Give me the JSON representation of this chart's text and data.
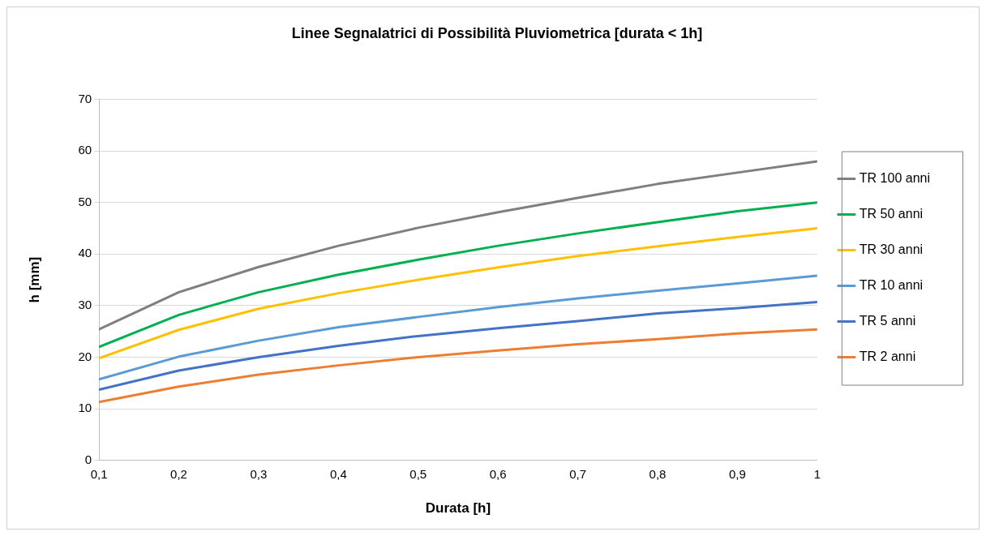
{
  "chart_data": {
    "type": "line",
    "title": "Linee Segnalatrici di Possibilità Pluviometrica [durata < 1h]",
    "xlabel": "Durata [h]",
    "ylabel": "h [mm]",
    "x": [
      0.1,
      0.2,
      0.3,
      0.4,
      0.5,
      0.6,
      0.7,
      0.8,
      0.9,
      1
    ],
    "xlim": [
      0.1,
      1
    ],
    "xticks": [
      {
        "value": 0.1,
        "label": "0,1"
      },
      {
        "value": 0.2,
        "label": "0,2"
      },
      {
        "value": 0.3,
        "label": "0,3"
      },
      {
        "value": 0.4,
        "label": "0,4"
      },
      {
        "value": 0.5,
        "label": "0,5"
      },
      {
        "value": 0.6,
        "label": "0,6"
      },
      {
        "value": 0.7,
        "label": "0,7"
      },
      {
        "value": 0.8,
        "label": "0,8"
      },
      {
        "value": 0.9,
        "label": "0,9"
      },
      1
    ],
    "ylim": [
      0,
      70
    ],
    "yticks": [
      0,
      10,
      20,
      30,
      40,
      50,
      60,
      70
    ],
    "grid": "y",
    "legend": "right",
    "marker": "none",
    "line_style": "solid",
    "series": [
      {
        "name": "TR 100 anni",
        "color": "#7f7f7f",
        "values": [
          25.4,
          32.6,
          37.5,
          41.6,
          45.1,
          48.1,
          50.9,
          53.6,
          55.8,
          58.0
        ]
      },
      {
        "name": "TR 50 anni",
        "color": "#00b050",
        "values": [
          22.0,
          28.2,
          32.6,
          36.0,
          38.9,
          41.6,
          44.0,
          46.2,
          48.3,
          50.0
        ]
      },
      {
        "name": "TR 30 anni",
        "color": "#ffc000",
        "values": [
          19.8,
          25.3,
          29.4,
          32.4,
          35.0,
          37.4,
          39.6,
          41.5,
          43.3,
          45.0
        ]
      },
      {
        "name": "TR 10 anni",
        "color": "#5b9bd5",
        "values": [
          15.7,
          20.1,
          23.2,
          25.8,
          27.8,
          29.7,
          31.4,
          32.9,
          34.3,
          35.8
        ]
      },
      {
        "name": "TR 5 anni",
        "color": "#4472c4",
        "values": [
          13.7,
          17.4,
          20.0,
          22.2,
          24.1,
          25.6,
          27.0,
          28.5,
          29.5,
          30.7
        ]
      },
      {
        "name": "TR 2 anni",
        "color": "#ed7d31",
        "values": [
          11.3,
          14.3,
          16.6,
          18.4,
          20.0,
          21.3,
          22.5,
          23.5,
          24.6,
          25.4
        ]
      }
    ]
  }
}
